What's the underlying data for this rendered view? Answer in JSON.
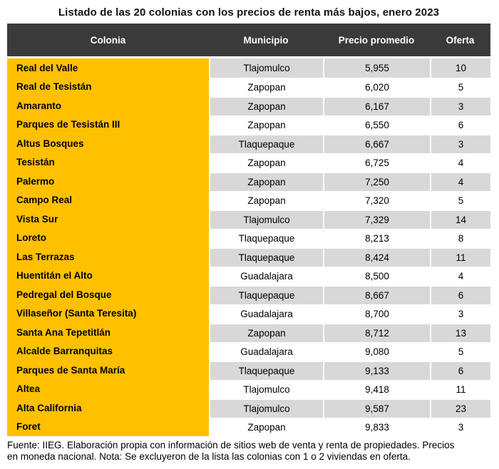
{
  "title": "Listado de las 20 colonias con los precios de renta más bajos, enero 2023",
  "colors": {
    "header_bg": "#3a3a3a",
    "header_text": "#ffffff",
    "colonia_column_bg": "#ffc000",
    "row_alt_bg": "#d8d8d8",
    "row_bg": "#ffffff",
    "text": "#000000"
  },
  "chart_data": {
    "type": "table",
    "title": "Listado de las 20 colonias con los precios de renta más bajos, enero 2023",
    "columns": [
      "Colonia",
      "Municipio",
      "Precio promedio",
      "Oferta"
    ],
    "rows": [
      [
        "Real del Valle",
        "Tlajomulco",
        "5,955",
        "10"
      ],
      [
        "Real de Tesistán",
        "Zapopan",
        "6,020",
        "5"
      ],
      [
        "Amaranto",
        "Zapopan",
        "6,167",
        "3"
      ],
      [
        "Parques de Tesistán III",
        "Zapopan",
        "6,550",
        "6"
      ],
      [
        "Altus Bosques",
        "Tlaquepaque",
        "6,667",
        "3"
      ],
      [
        "Tesistán",
        "Zapopan",
        "6,725",
        "4"
      ],
      [
        "Palermo",
        "Zapopan",
        "7,250",
        "4"
      ],
      [
        "Campo Real",
        "Zapopan",
        "7,320",
        "5"
      ],
      [
        "Vista Sur",
        "Tlajomulco",
        "7,329",
        "14"
      ],
      [
        "Loreto",
        "Tlaquepaque",
        "8,213",
        "8"
      ],
      [
        "Las Terrazas",
        "Tlaquepaque",
        "8,424",
        "11"
      ],
      [
        "Huentitán el Alto",
        "Guadalajara",
        "8,500",
        "4"
      ],
      [
        "Pedregal del Bosque",
        "Tlaquepaque",
        "8,667",
        "6"
      ],
      [
        "Villaseñor (Santa Teresita)",
        "Guadalajara",
        "8,700",
        "3"
      ],
      [
        "Santa Ana Tepetitlán",
        "Zapopan",
        "8,712",
        "13"
      ],
      [
        "Alcalde Barranquitas",
        "Guadalajara",
        "9,080",
        "5"
      ],
      [
        "Parques de Santa María",
        "Tlaquepaque",
        "9,133",
        "6"
      ],
      [
        "Altea",
        "Tlajomulco",
        "9,418",
        "11"
      ],
      [
        "Alta California",
        "Tlajomulco",
        "9,587",
        "23"
      ],
      [
        "Foret",
        "Zapopan",
        "9,833",
        "3"
      ]
    ]
  },
  "footer": {
    "line1": "Fuente: IIEG. Elaboración propia con información de sitios web de venta y renta de propiedades. Precios",
    "line2": "en moneda nacional. Nota: Se excluyeron de la lista las colonias con 1 o 2 viviendas en oferta."
  }
}
